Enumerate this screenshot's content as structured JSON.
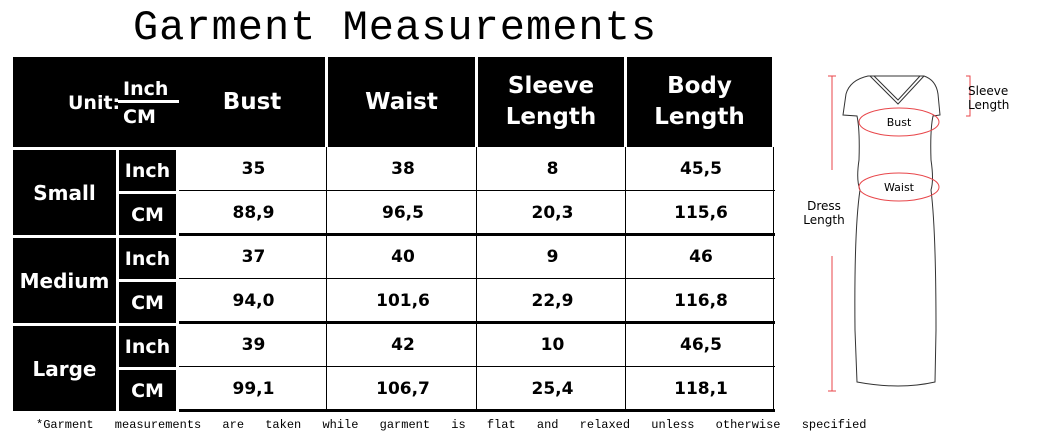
{
  "title": "Garment Measurements",
  "unit_header": {
    "label": "Unit:",
    "top": "Inch",
    "bottom": "CM"
  },
  "columns": [
    "Bust",
    "Waist",
    "Sleeve Length",
    "Body Length"
  ],
  "sizes": [
    {
      "name": "Small",
      "rows": [
        {
          "unit": "Inch",
          "values": [
            "35",
            "38",
            "8",
            "45,5"
          ]
        },
        {
          "unit": "CM",
          "values": [
            "88,9",
            "96,5",
            "20,3",
            "115,6"
          ]
        }
      ]
    },
    {
      "name": "Medium",
      "rows": [
        {
          "unit": "Inch",
          "values": [
            "37",
            "40",
            "9",
            "46"
          ]
        },
        {
          "unit": "CM",
          "values": [
            "94,0",
            "101,6",
            "22,9",
            "116,8"
          ]
        }
      ]
    },
    {
      "name": "Large",
      "rows": [
        {
          "unit": "Inch",
          "values": [
            "39",
            "42",
            "10",
            "46,5"
          ]
        },
        {
          "unit": "CM",
          "values": [
            "99,1",
            "106,7",
            "25,4",
            "118,1"
          ]
        }
      ]
    }
  ],
  "footnote": "*Garment measurements are taken while garment is flat and relaxed unless otherwise specified",
  "diagram": {
    "bust": "Bust",
    "waist": "Waist",
    "sleeve_line1": "Sleeve",
    "sleeve_line2": "Length",
    "dress_line1": "Dress",
    "dress_line2": "Length",
    "accent_color": "#e8464a"
  }
}
